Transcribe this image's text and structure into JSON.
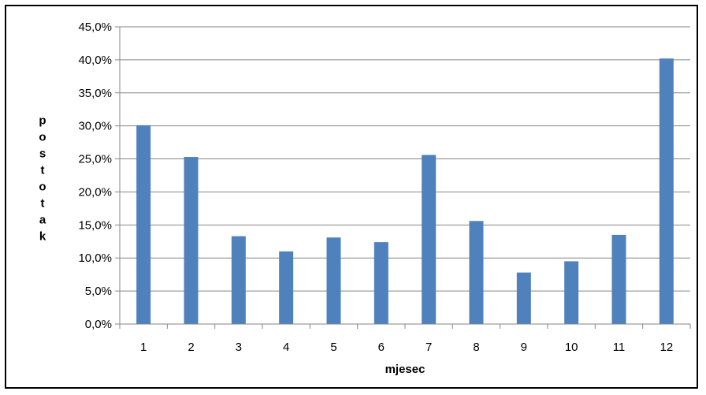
{
  "chart_data": {
    "type": "bar",
    "title": "",
    "xlabel": "mjesec",
    "ylabel": "postotak",
    "categories": [
      "1",
      "2",
      "3",
      "4",
      "5",
      "6",
      "7",
      "8",
      "9",
      "10",
      "11",
      "12"
    ],
    "series": [
      {
        "values": [
          30.1,
          25.3,
          13.3,
          11.0,
          13.1,
          12.4,
          25.6,
          15.6,
          7.8,
          9.5,
          13.5,
          40.2
        ],
        "color": "#4F81BD"
      }
    ],
    "ylim": [
      0,
      45
    ],
    "ytick_step": 5,
    "ytick_labels": [
      "0,0%",
      "5,0%",
      "10,0%",
      "15,0%",
      "20,0%",
      "25,0%",
      "30,0%",
      "35,0%",
      "40,0%",
      "45,0%"
    ],
    "grid": true,
    "gridline_color": "#868686",
    "legend": "none"
  }
}
